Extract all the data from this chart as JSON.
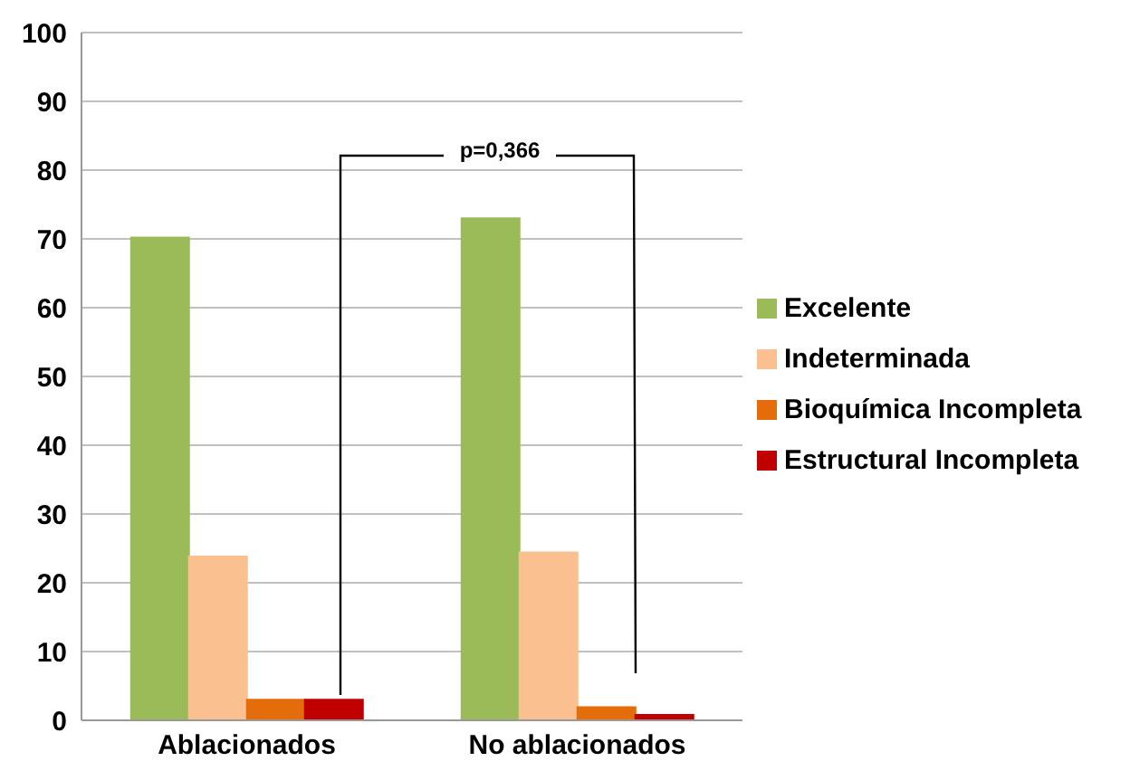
{
  "chart_data": {
    "type": "bar",
    "categories": [
      "Ablacionados",
      "No ablacionados"
    ],
    "series": [
      {
        "name": "Excelente",
        "color": "#9bbb59",
        "values": [
          70.2,
          73
        ]
      },
      {
        "name": "Indeterminada",
        "color": "#fac090",
        "values": [
          23.8,
          24.4
        ]
      },
      {
        "name": "Bioquímica Incompleta",
        "color": "#e46c0a",
        "values": [
          3,
          1.9
        ]
      },
      {
        "name": "Estructural Incompleta",
        "color": "#c00000",
        "values": [
          3,
          0.8
        ]
      }
    ],
    "ylim": [
      0,
      100
    ],
    "yticks": [
      0,
      10,
      20,
      30,
      40,
      50,
      60,
      70,
      80,
      90,
      100
    ],
    "grid": "y",
    "legend": "right",
    "annotations": [
      "p=0,366"
    ]
  }
}
